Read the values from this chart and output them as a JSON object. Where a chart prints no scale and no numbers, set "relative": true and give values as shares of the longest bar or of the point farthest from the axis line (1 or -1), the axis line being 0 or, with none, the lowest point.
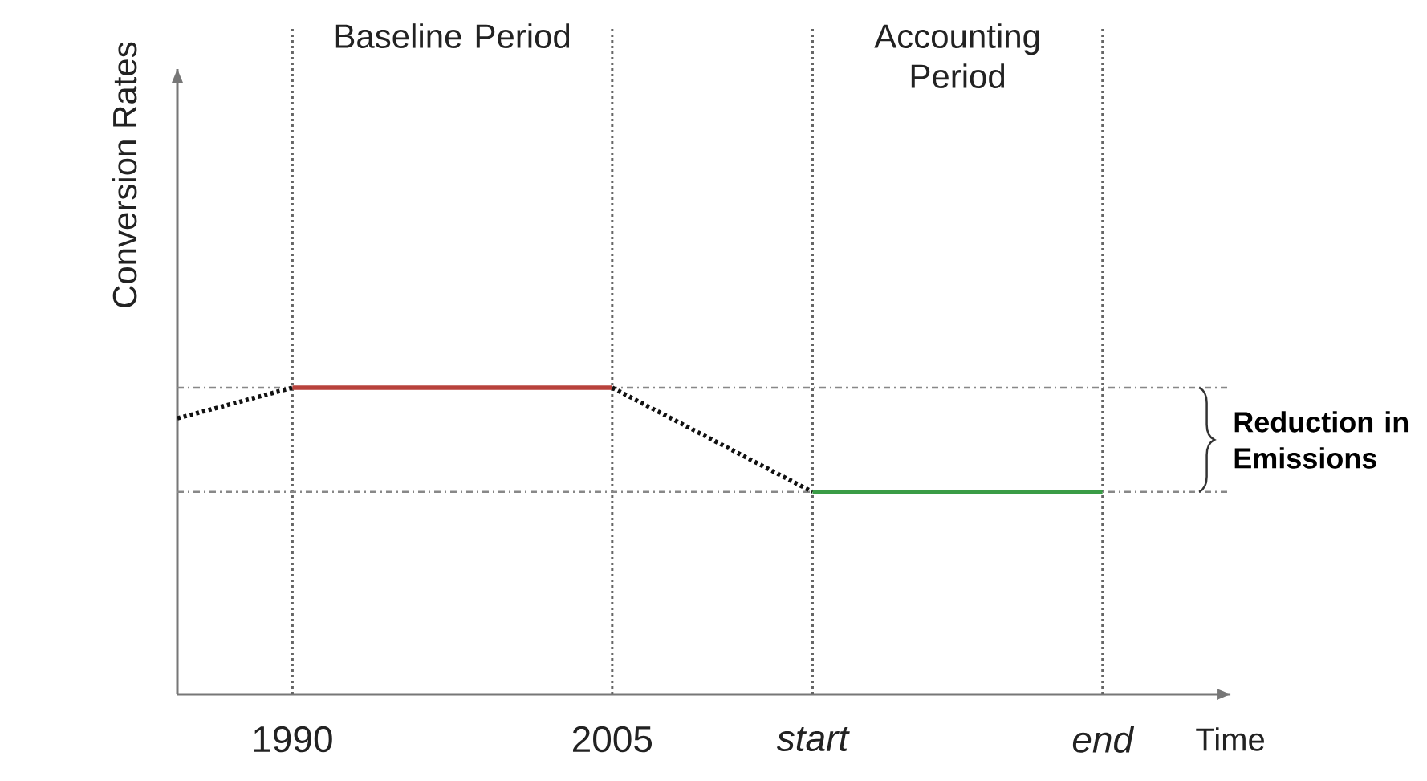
{
  "chart_data": {
    "type": "line",
    "relative": true,
    "xlabel": "Time",
    "ylabel": "Conversion Rates",
    "xlim": [
      1984.6,
      2034
    ],
    "xticks": [
      1990,
      2005,
      {
        "value": 2014.4,
        "label": "start"
      },
      {
        "value": 2028,
        "label": "end"
      }
    ],
    "series": [
      {
        "color": "#111111",
        "line_style": "dotted",
        "x": [
          1984.6,
          1990
        ],
        "values": [
          0.9,
          1
        ]
      },
      {
        "color": "#b8423c",
        "line_style": "solid",
        "x": [
          1990,
          2005
        ],
        "values": [
          1,
          1
        ]
      },
      {
        "color": "#111111",
        "line_style": "dotted",
        "x": [
          2005,
          2014.4
        ],
        "values": [
          1,
          0.66
        ]
      },
      {
        "color": "#3a9c46",
        "line_style": "solid",
        "x": [
          2014.4,
          2028
        ],
        "values": [
          0.66,
          0.66
        ]
      }
    ],
    "ref_lines": [
      {
        "axis": "x",
        "value": 1990,
        "line_style": "dotted",
        "color": "#666666"
      },
      {
        "axis": "x",
        "value": 2005,
        "line_style": "dotted",
        "color": "#666666"
      },
      {
        "axis": "x",
        "value": 2014.4,
        "line_style": "dotted",
        "color": "#666666"
      },
      {
        "axis": "x",
        "value": 2028,
        "line_style": "dotted",
        "color": "#666666"
      },
      {
        "axis": "y",
        "value": 1,
        "line_style": "dashed",
        "color": "#888888"
      },
      {
        "axis": "y",
        "value": 0.66,
        "line_style": "dashed",
        "color": "#888888"
      }
    ],
    "annotations": [
      "Baseline Period",
      "Accounting Period",
      "Reduction in Emissions"
    ]
  }
}
